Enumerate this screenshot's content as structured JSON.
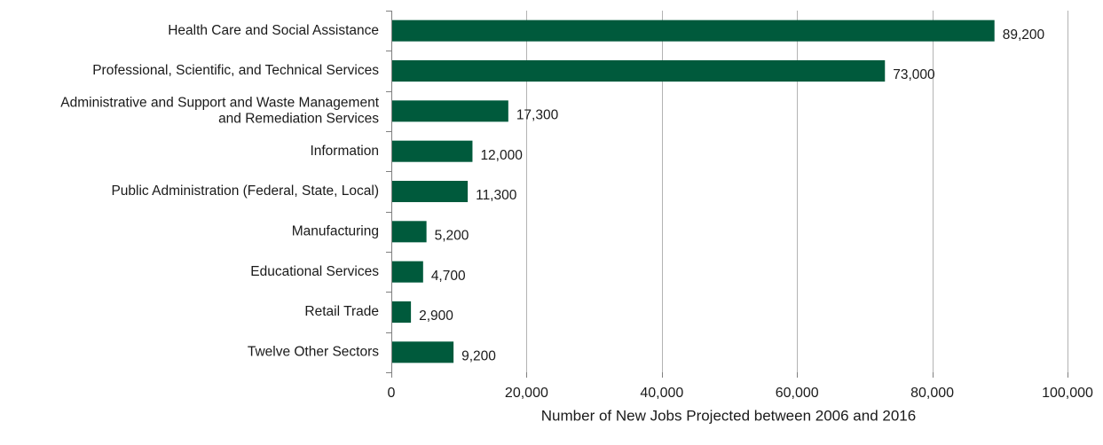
{
  "chart_data": {
    "type": "bar",
    "orientation": "horizontal",
    "categories": [
      [
        "Health Care and Social Assistance"
      ],
      [
        "Professional, Scientific, and Technical Services"
      ],
      [
        "Administrative and Support and Waste Management",
        "and Remediation Services"
      ],
      [
        "Information"
      ],
      [
        "Public Administration (Federal, State, Local)"
      ],
      [
        "Manufacturing"
      ],
      [
        "Educational Services"
      ],
      [
        "Retail Trade"
      ],
      [
        "Twelve Other Sectors"
      ]
    ],
    "values": [
      89200,
      73000,
      17300,
      12000,
      11300,
      5200,
      4700,
      2900,
      9200
    ],
    "value_labels": [
      "89,200",
      "73,000",
      "17,300",
      "12,000",
      "11,300",
      "5,200",
      "4,700",
      "2,900",
      "9,200"
    ],
    "title": "",
    "xlabel": "Number of New Jobs Projected between 2006 and 2016",
    "ylabel": "",
    "xlim": [
      0,
      100000
    ],
    "xticks": [
      0,
      20000,
      40000,
      60000,
      80000,
      100000
    ],
    "xtick_labels": [
      "0",
      "20,000",
      "40,000",
      "60,000",
      "80,000",
      "100,000"
    ],
    "grid": "vertical",
    "legend": "none",
    "colors": {
      "bar": "#005a3c"
    }
  }
}
